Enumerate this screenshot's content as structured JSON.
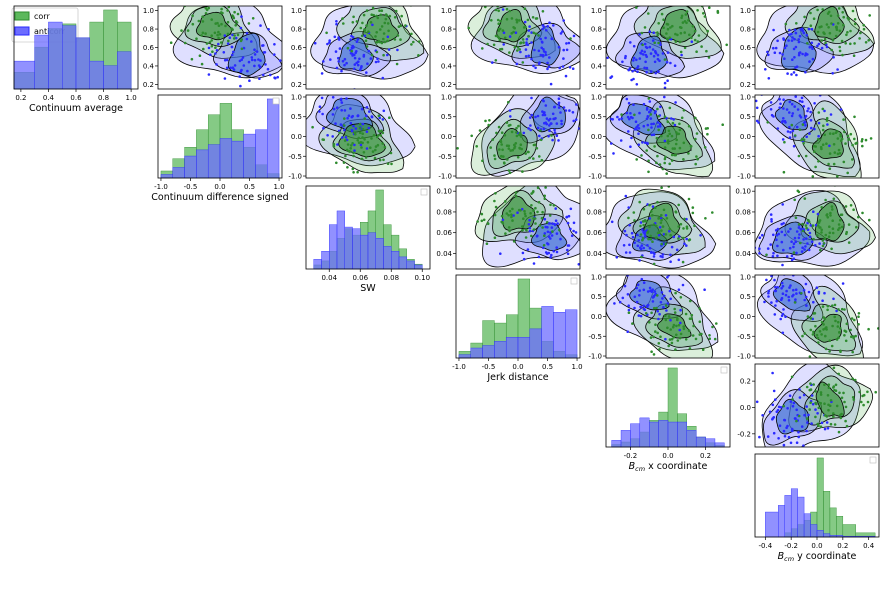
{
  "colors": {
    "corr": "#2e8b2e",
    "anticorr": "#2a2aff",
    "corr_fill": "#5cb85c",
    "anticorr_fill": "#6c6cff"
  },
  "legend": {
    "corr": "corr",
    "anticorr": "anticorr"
  },
  "variable_labels": [
    "Continuum average",
    "Continuum difference signed",
    "SW",
    "Jerk distance",
    "B_cm x coordinate",
    "B_cm y coordinate"
  ],
  "chart_data": {
    "type": "pairplot",
    "series": [
      {
        "name": "corr"
      },
      {
        "name": "anticorr"
      }
    ],
    "diagonals": [
      {
        "variable": "Continuum average",
        "xlim": [
          0.15,
          1.05
        ],
        "xticks": [
          "0.2",
          "0.4",
          "0.6",
          "0.8",
          "1.0"
        ],
        "bins": [
          0.15,
          0.3,
          0.4,
          0.5,
          0.6,
          0.7,
          0.8,
          0.9,
          1.0
        ],
        "corr": [
          0.18,
          0.45,
          0.65,
          0.7,
          0.55,
          0.72,
          0.85,
          0.72
        ],
        "anticorr": [
          0.3,
          0.58,
          0.72,
          0.68,
          0.55,
          0.3,
          0.25,
          0.4
        ]
      },
      {
        "variable": "Continuum difference signed",
        "xlim": [
          -1.05,
          1.05
        ],
        "xticks": [
          "-1.0",
          "-0.5",
          "0.0",
          "0.5",
          "1.0"
        ],
        "bins": [
          -1.0,
          -0.8,
          -0.6,
          -0.4,
          -0.2,
          0.0,
          0.2,
          0.4,
          0.6,
          0.8,
          1.0
        ],
        "corr": [
          0.08,
          0.22,
          0.35,
          0.55,
          0.72,
          0.85,
          0.55,
          0.35,
          0.15,
          0.05
        ],
        "anticorr": [
          0.04,
          0.12,
          0.25,
          0.32,
          0.38,
          0.45,
          0.42,
          0.5,
          0.55,
          0.9
        ]
      },
      {
        "variable": "SW",
        "xlim": [
          0.025,
          0.105
        ],
        "xticks": [
          "0.04",
          "0.06",
          "0.08",
          "0.10"
        ],
        "tickvals": [
          0.04,
          0.06,
          0.08,
          0.1
        ],
        "bins": [
          0.03,
          0.035,
          0.04,
          0.045,
          0.05,
          0.055,
          0.06,
          0.065,
          0.07,
          0.075,
          0.08,
          0.085,
          0.09,
          0.095,
          0.1
        ],
        "corr": [
          0.05,
          0.1,
          0.22,
          0.38,
          0.5,
          0.42,
          0.58,
          0.72,
          0.98,
          0.55,
          0.42,
          0.25,
          0.12,
          0.06
        ],
        "anticorr": [
          0.12,
          0.22,
          0.55,
          0.72,
          0.52,
          0.5,
          0.42,
          0.45,
          0.38,
          0.28,
          0.22,
          0.15,
          0.1,
          0.05
        ]
      },
      {
        "variable": "Jerk distance",
        "xlim": [
          -1.05,
          1.05
        ],
        "xticks": [
          "-1.0",
          "-0.5",
          "0.0",
          "0.5",
          "1.0"
        ],
        "bins": [
          -1.0,
          -0.8,
          -0.6,
          -0.4,
          -0.2,
          0.0,
          0.2,
          0.4,
          0.6,
          0.8,
          1.0
        ],
        "corr": [
          0.08,
          0.18,
          0.45,
          0.42,
          0.52,
          0.95,
          0.6,
          0.2,
          0.08,
          0.04
        ],
        "anticorr": [
          0.04,
          0.12,
          0.15,
          0.2,
          0.25,
          0.25,
          0.35,
          0.62,
          0.55,
          0.58
        ]
      },
      {
        "variable": "B_cm x coordinate",
        "xlim": [
          -0.33,
          0.33
        ],
        "xticks": [
          "-0.2",
          "0.0",
          "0.2"
        ],
        "tickvals": [
          -0.2,
          0.0,
          0.2
        ],
        "bins": [
          -0.3,
          -0.25,
          -0.2,
          -0.15,
          -0.1,
          -0.05,
          0.0,
          0.05,
          0.1,
          0.15,
          0.2,
          0.25,
          0.3
        ],
        "corr": [
          0.03,
          0.06,
          0.1,
          0.18,
          0.32,
          0.42,
          0.95,
          0.4,
          0.25,
          0.12,
          0.05,
          0.02
        ],
        "anticorr": [
          0.08,
          0.2,
          0.28,
          0.35,
          0.3,
          0.32,
          0.3,
          0.3,
          0.2,
          0.12,
          0.1,
          0.05
        ]
      },
      {
        "variable": "B_cm y coordinate",
        "xlim": [
          -0.48,
          0.48
        ],
        "xticks": [
          "-0.4",
          "-0.2",
          "0.0",
          "0.2",
          "0.4"
        ],
        "tickvals": [
          -0.4,
          -0.2,
          0.0,
          0.2,
          0.4
        ],
        "bins": [
          -0.4,
          -0.3,
          -0.25,
          -0.2,
          -0.15,
          -0.1,
          -0.05,
          0.0,
          0.05,
          0.1,
          0.15,
          0.2,
          0.3,
          0.45
        ],
        "corr": [
          0.0,
          0.0,
          0.05,
          0.1,
          0.15,
          0.2,
          0.3,
          0.95,
          0.55,
          0.35,
          0.25,
          0.15,
          0.05
        ],
        "anticorr": [
          0.3,
          0.38,
          0.5,
          0.58,
          0.48,
          0.28,
          0.15,
          0.08,
          0.04,
          0.02,
          0.02,
          0.01,
          0.01
        ]
      }
    ],
    "offdiagonal_ylims": {
      "Continuum average": [
        0.15,
        1.05
      ],
      "Continuum difference signed": [
        -1.05,
        1.05
      ],
      "SW": [
        0.025,
        0.105
      ],
      "Jerk distance": [
        -1.05,
        1.05
      ],
      "B_cm x coordinate": [
        -0.3,
        0.33
      ]
    },
    "offdiagonal_yticks": {
      "Continuum average": [
        "0.2",
        "0.4",
        "0.6",
        "0.8",
        "1.0"
      ],
      "Continuum difference signed": [
        "-1.0",
        "-0.5",
        "0.0",
        "0.5",
        "1.0"
      ],
      "SW": [
        "0.04",
        "0.06",
        "0.08",
        "0.10"
      ],
      "Jerk distance": [
        "-1.0",
        "-0.5",
        "0.0",
        "0.5",
        "1.0"
      ],
      "B_cm x coordinate": [
        "-0.2",
        "0.0",
        "0.2"
      ]
    }
  }
}
